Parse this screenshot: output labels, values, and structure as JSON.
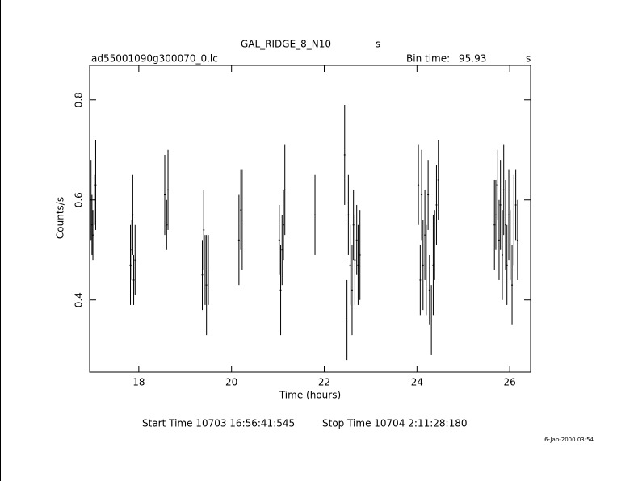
{
  "chart_data": {
    "type": "errorbar",
    "title": "GAL_RIDGE_8_N10",
    "title_unit": "s",
    "file_name": "ad55001090g300070_0.lc",
    "bin_time_label": "Bin time:",
    "bin_time": "95.93",
    "bin_time_unit": "s",
    "ylabel": "Counts/s",
    "xlabel": "Time (hours)",
    "start_time": "Start Time 10703 16:56:41:545",
    "stop_time": "Stop Time 10704  2:11:28:180",
    "date": "6-Jan-2000 03:54",
    "color": "#000000",
    "xlim": [
      16.94,
      26.45
    ],
    "xticks": [
      18,
      20,
      22,
      24,
      26
    ],
    "ylim": [
      0.256,
      0.869
    ],
    "yticks": [
      0.4,
      0.6,
      0.8
    ],
    "x": [
      16.97,
      16.99,
      17.01,
      17.04,
      17.07,
      17.82,
      17.85,
      17.87,
      17.89,
      17.92,
      18.56,
      18.6,
      18.63,
      19.37,
      19.4,
      19.43,
      19.46,
      19.5,
      20.16,
      20.2,
      20.23,
      21.03,
      21.06,
      21.09,
      21.12,
      21.15,
      21.8,
      22.44,
      22.47,
      22.49,
      22.52,
      22.56,
      22.6,
      22.63,
      22.66,
      22.7,
      22.73,
      22.77,
      24.03,
      24.07,
      24.1,
      24.13,
      24.17,
      24.2,
      24.24,
      24.27,
      24.31,
      24.35,
      24.38,
      24.42,
      24.46,
      25.67,
      25.7,
      25.73,
      25.77,
      25.8,
      25.84,
      25.87,
      25.91,
      25.94,
      25.98,
      26.01,
      26.05,
      26.09,
      26.13,
      26.17
    ],
    "values": [
      0.6,
      0.55,
      0.53,
      0.6,
      0.63,
      0.47,
      0.5,
      0.57,
      0.44,
      0.48,
      0.61,
      0.55,
      0.62,
      0.45,
      0.54,
      0.46,
      0.43,
      0.46,
      0.52,
      0.58,
      0.56,
      0.52,
      0.42,
      0.5,
      0.55,
      0.62,
      0.57,
      0.69,
      0.56,
      0.36,
      0.57,
      0.47,
      0.42,
      0.55,
      0.48,
      0.52,
      0.47,
      0.49,
      0.63,
      0.44,
      0.61,
      0.47,
      0.53,
      0.46,
      0.61,
      0.42,
      0.36,
      0.47,
      0.51,
      0.59,
      0.64,
      0.55,
      0.57,
      0.63,
      0.52,
      0.59,
      0.49,
      0.62,
      0.55,
      0.47,
      0.57,
      0.51,
      0.43,
      0.56,
      0.59,
      0.52
    ],
    "errors": [
      0.08,
      0.06,
      0.05,
      0.05,
      0.09,
      0.08,
      0.06,
      0.08,
      0.05,
      0.07,
      0.08,
      0.05,
      0.08,
      0.07,
      0.08,
      0.07,
      0.1,
      0.07,
      0.09,
      0.08,
      0.1,
      0.07,
      0.09,
      0.07,
      0.07,
      0.09,
      0.08,
      0.1,
      0.08,
      0.08,
      0.08,
      0.08,
      0.09,
      0.07,
      0.09,
      0.07,
      0.08,
      0.09,
      0.08,
      0.07,
      0.09,
      0.09,
      0.09,
      0.09,
      0.07,
      0.07,
      0.07,
      0.1,
      0.07,
      0.08,
      0.08,
      0.09,
      0.07,
      0.07,
      0.08,
      0.09,
      0.09,
      0.09,
      0.09,
      0.08,
      0.09,
      0.07,
      0.08,
      0.09,
      0.07,
      0.08
    ]
  }
}
